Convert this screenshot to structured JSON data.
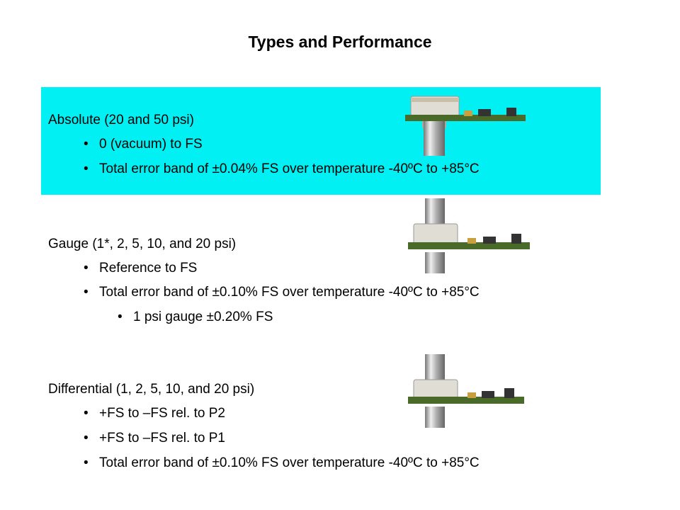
{
  "title": "Types and Performance",
  "highlight_color": "#00f0f4",
  "sections": [
    {
      "heading": "Absolute (20 and 50 psi)",
      "bullets": [
        "0 (vacuum) to FS",
        "Total error band of ±0.04% FS over temperature -40ºC to +85°C"
      ]
    },
    {
      "heading": "Gauge (1*, 2, 5, 10, and 20 psi)",
      "bullets": [
        "Reference to FS",
        "Total error band of ±0.10% FS over temperature -40ºC to +85°C"
      ],
      "sub_bullets": [
        "1 psi gauge ±0.20% FS"
      ]
    },
    {
      "heading": "Differential (1, 2, 5, 10, and 20 psi)",
      "bullets": [
        "+FS to –FS rel. to P2",
        "+FS to –FS rel. to P1",
        "Total error band of ±0.10% FS over temperature -40ºC to +85°C"
      ]
    }
  ],
  "bullet_glyph": "•"
}
